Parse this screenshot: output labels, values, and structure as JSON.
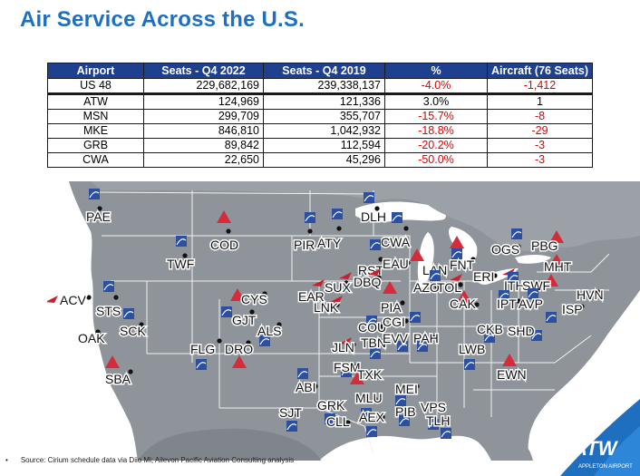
{
  "slide": {
    "title": "Air Service Across the U.S."
  },
  "table": {
    "headers": [
      "Airport",
      "Seats - Q4 2022",
      "Seats - Q4 2019",
      "%",
      "Aircraft (76 Seats)"
    ],
    "rows": [
      {
        "airport": "US 48",
        "q4_2022": "229,682,169",
        "q4_2019": "239,338,137",
        "pct": "-4.0%",
        "aircraft": "-1,412",
        "pct_neg": true,
        "ac_neg": true
      },
      {
        "airport": "ATW",
        "q4_2022": "124,969",
        "q4_2019": "121,336",
        "pct": "3.0%",
        "aircraft": "1",
        "pct_neg": false,
        "ac_neg": false
      },
      {
        "airport": "MSN",
        "q4_2022": "299,709",
        "q4_2019": "355,707",
        "pct": "-15.7%",
        "aircraft": "-8",
        "pct_neg": true,
        "ac_neg": true
      },
      {
        "airport": "MKE",
        "q4_2022": "846,810",
        "q4_2019": "1,042,932",
        "pct": "-18.8%",
        "aircraft": "-29",
        "pct_neg": true,
        "ac_neg": true
      },
      {
        "airport": "GRB",
        "q4_2022": "89,842",
        "q4_2019": "112,594",
        "pct": "-20.2%",
        "aircraft": "-3",
        "pct_neg": true,
        "ac_neg": true
      },
      {
        "airport": "CWA",
        "q4_2022": "22,650",
        "q4_2019": "45,296",
        "pct": "-50.0%",
        "aircraft": "-3",
        "pct_neg": true,
        "ac_neg": true
      }
    ]
  },
  "map": {
    "airport_codes": [
      "PAE",
      "COD",
      "PIR",
      "ATY",
      "DLH",
      "CWA",
      "OGS",
      "PBG",
      "TWF",
      "RST",
      "EAU",
      "LAN",
      "FNT",
      "MHT",
      "ERI",
      "ACV",
      "STS",
      "OAK",
      "SCK",
      "CYS",
      "GJT",
      "EAR",
      "SUX",
      "DBQ",
      "AZO",
      "TOL",
      "ITH",
      "SWF",
      "HVN",
      "ISP",
      "LNK",
      "PIA",
      "CAK",
      "IPT",
      "AVP",
      "ALS",
      "FLG",
      "DRO",
      "COU",
      "CGI",
      "CKB",
      "SHD",
      "SBA",
      "JLN",
      "TBN",
      "EVV",
      "PAH",
      "LWB",
      "FSM",
      "TXK",
      "EWN",
      "ABI",
      "MLU",
      "MEI",
      "GRK",
      "SJT",
      "CLL",
      "AEX",
      "PIB",
      "VPS",
      "TLH"
    ],
    "colors": {
      "land": "#8e9499",
      "border": "#f2f2f2",
      "water": "#ffffff",
      "delta_red": "#d52b3a",
      "united_blue": "#2b4fa3",
      "american_red": "#c8202f"
    }
  },
  "footer": {
    "bullet": "•",
    "source": "Source: Cirium schedule data via Diio Mi; Ailevon Pacific Aviation Consulting analysis"
  },
  "logo": {
    "mark": "ATW",
    "caption": "APPLETON AIRPORT"
  },
  "icons": [
    "delta-logo-icon",
    "united-logo-icon",
    "american-logo-icon",
    "airport-dot-icon"
  ]
}
